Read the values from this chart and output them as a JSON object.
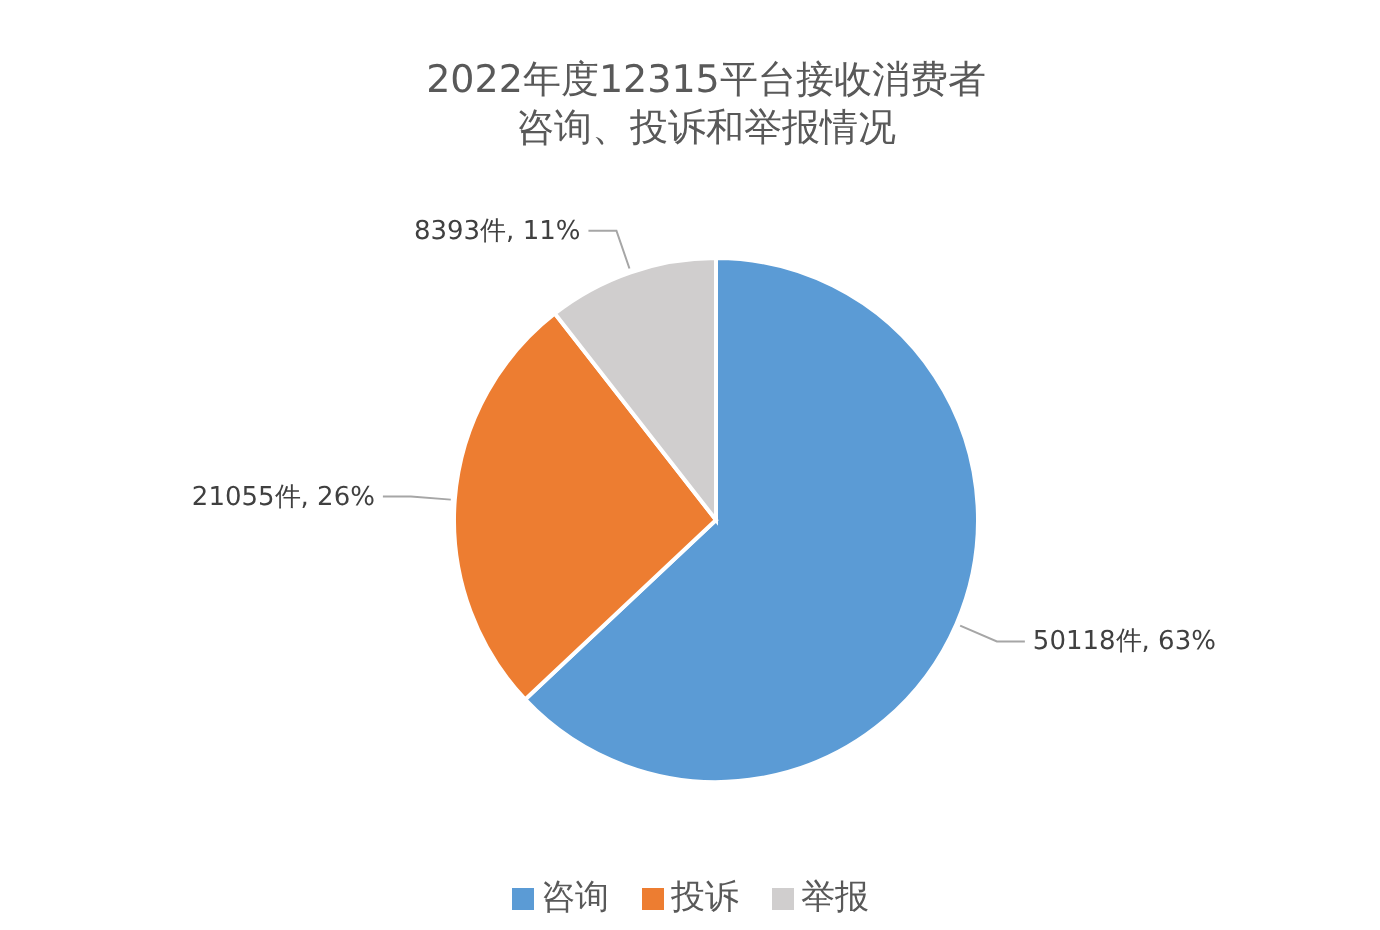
{
  "chart_data": {
    "type": "pie",
    "title": "2022年度12315平台接收消费者咨询、投诉和举报情况",
    "categories": [
      "咨询",
      "投诉",
      "举报"
    ],
    "values": [
      50118,
      21055,
      8393
    ],
    "colors": [
      "#5b9bd5",
      "#ed7d31",
      "#d0cece"
    ],
    "value_labels": [
      "50118件, 63%",
      "21055件, 26%",
      "8393件, 11%"
    ],
    "legend": "bottom"
  }
}
